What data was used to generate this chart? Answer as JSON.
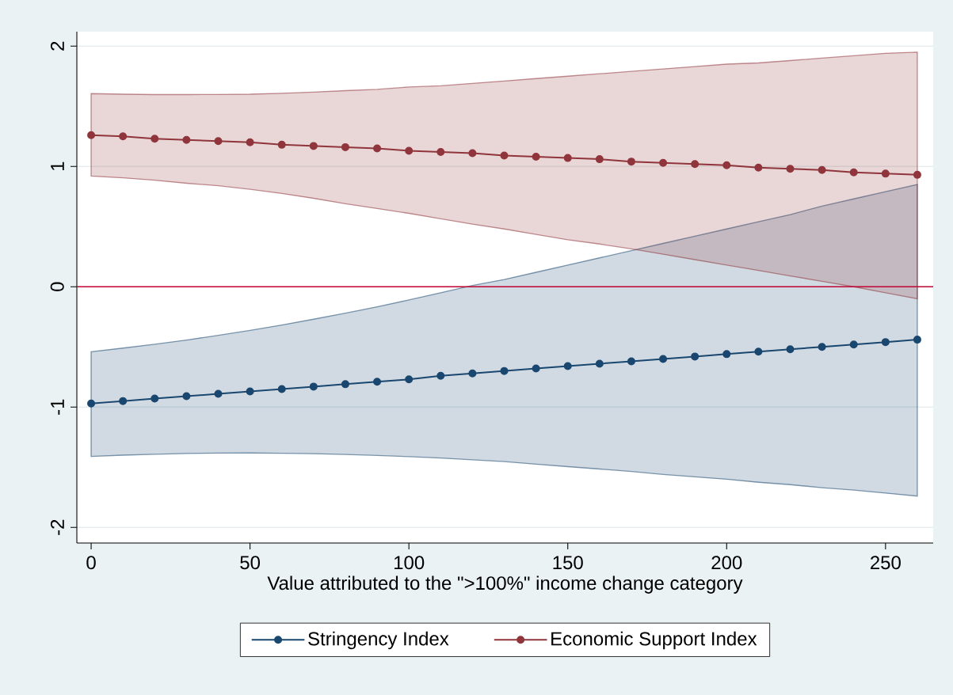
{
  "chart_data": {
    "type": "line",
    "xlabel": "Value attributed to the \">100%\" income change category",
    "x": [
      0,
      10,
      20,
      30,
      40,
      50,
      60,
      70,
      80,
      90,
      100,
      110,
      120,
      130,
      140,
      150,
      160,
      170,
      180,
      190,
      200,
      210,
      220,
      230,
      240,
      250,
      260
    ],
    "series": [
      {
        "name": "Stringency Index",
        "color": "#1a476f",
        "values": [
          -0.97,
          -0.95,
          -0.93,
          -0.91,
          -0.89,
          -0.87,
          -0.85,
          -0.83,
          -0.81,
          -0.79,
          -0.77,
          -0.74,
          -0.72,
          -0.7,
          -0.68,
          -0.66,
          -0.64,
          -0.62,
          -0.6,
          -0.58,
          -0.56,
          -0.54,
          -0.52,
          -0.5,
          -0.48,
          -0.46,
          -0.44
        ],
        "lower": [
          -1.41,
          -1.4,
          -1.392,
          -1.386,
          -1.383,
          -1.382,
          -1.384,
          -1.388,
          -1.394,
          -1.402,
          -1.412,
          -1.424,
          -1.438,
          -1.453,
          -1.475,
          -1.495,
          -1.515,
          -1.535,
          -1.56,
          -1.58,
          -1.6,
          -1.625,
          -1.645,
          -1.67,
          -1.69,
          -1.715,
          -1.74
        ],
        "upper": [
          -0.54,
          -0.51,
          -0.478,
          -0.443,
          -0.404,
          -0.363,
          -0.318,
          -0.27,
          -0.22,
          -0.167,
          -0.11,
          -0.05,
          0.01,
          0.06,
          0.12,
          0.18,
          0.24,
          0.3,
          0.36,
          0.42,
          0.48,
          0.54,
          0.6,
          0.67,
          0.73,
          0.79,
          0.85
        ]
      },
      {
        "name": "Economic Support Index",
        "color": "#90353b",
        "values": [
          1.26,
          1.25,
          1.23,
          1.22,
          1.21,
          1.2,
          1.18,
          1.17,
          1.16,
          1.15,
          1.13,
          1.12,
          1.11,
          1.09,
          1.08,
          1.07,
          1.06,
          1.04,
          1.03,
          1.02,
          1.01,
          0.99,
          0.98,
          0.97,
          0.95,
          0.94,
          0.93
        ],
        "lower": [
          0.92,
          0.905,
          0.885,
          0.86,
          0.84,
          0.81,
          0.775,
          0.735,
          0.69,
          0.65,
          0.61,
          0.565,
          0.52,
          0.48,
          0.435,
          0.39,
          0.355,
          0.315,
          0.27,
          0.225,
          0.18,
          0.135,
          0.09,
          0.045,
          0.0,
          -0.05,
          -0.1
        ],
        "upper": [
          1.605,
          1.6,
          1.597,
          1.597,
          1.598,
          1.6,
          1.608,
          1.618,
          1.63,
          1.64,
          1.66,
          1.67,
          1.69,
          1.71,
          1.73,
          1.75,
          1.77,
          1.79,
          1.81,
          1.83,
          1.85,
          1.86,
          1.88,
          1.9,
          1.92,
          1.94,
          1.95
        ]
      }
    ],
    "xlim": [
      -4.5,
      265
    ],
    "xticks": [
      0,
      50,
      100,
      150,
      200,
      250
    ],
    "ylim": [
      -2.13,
      2.12
    ],
    "yticks": [
      -2,
      -1,
      0,
      1,
      2
    ],
    "ref_lines": [
      {
        "axis": "y",
        "value": 0,
        "color": "#c10534"
      }
    ],
    "grid": "y",
    "legend": "bottom",
    "marker": "circle",
    "line_style": "solid"
  }
}
